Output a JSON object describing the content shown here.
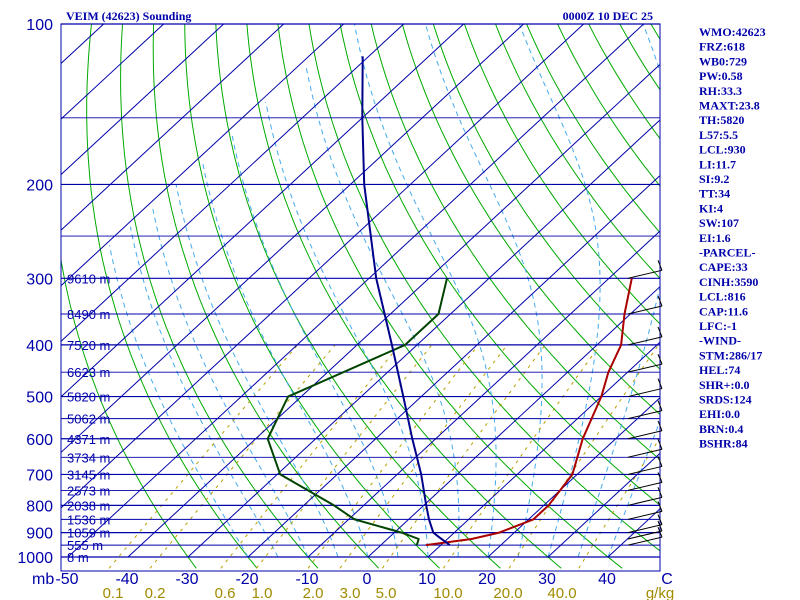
{
  "chart_data": {
    "type": "skew-t sounding",
    "title": "VEIM (42623) Sounding",
    "time_label": "0000Z 10 DEC 25",
    "pressure_axis": {
      "scale": "log",
      "range": [
        1000,
        100
      ],
      "tick_labels": [
        "100",
        "200",
        "300",
        "400",
        "500",
        "600",
        "700",
        "800",
        "900",
        "1000"
      ],
      "unit_label": "mb"
    },
    "temperature_axis": {
      "range": [
        -50,
        50
      ],
      "tick_labels": [
        "-50",
        "-40",
        "-30",
        "-20",
        "-10",
        "0",
        "10",
        "20",
        "30",
        "40",
        "C"
      ]
    },
    "mixing_ratio_labels": [
      "0.1",
      "0.2",
      "0.6",
      "1.0",
      "2.0",
      "3.0",
      "5.0",
      "10.0",
      "20.0",
      "40.0",
      "g/kg"
    ],
    "height_labels": [
      {
        "p": 300,
        "label": "9610 m"
      },
      {
        "p": 350,
        "label": "8490 m"
      },
      {
        "p": 400,
        "label": "7520 m"
      },
      {
        "p": 450,
        "label": "6623 m"
      },
      {
        "p": 500,
        "label": "5820 m"
      },
      {
        "p": 550,
        "label": "5062 m"
      },
      {
        "p": 600,
        "label": "4371 m"
      },
      {
        "p": 650,
        "label": "3734 m"
      },
      {
        "p": 700,
        "label": "3145 m"
      },
      {
        "p": 750,
        "label": "2573 m"
      },
      {
        "p": 800,
        "label": "2038 m"
      },
      {
        "p": 850,
        "label": "1536 m"
      },
      {
        "p": 900,
        "label": "1059 m"
      },
      {
        "p": 950,
        "label": "555 m"
      },
      {
        "p": 1000,
        "label": "8 m"
      }
    ],
    "series": [
      {
        "name": "temperature",
        "color": "#aa0000",
        "points": [
          [
            950,
            7.5
          ],
          [
            925,
            14
          ],
          [
            900,
            17.5
          ],
          [
            850,
            20.8
          ],
          [
            800,
            20.8
          ],
          [
            700,
            19.2
          ],
          [
            600,
            14.5
          ],
          [
            500,
            10
          ],
          [
            450,
            6.8
          ],
          [
            400,
            4
          ],
          [
            350,
            -1
          ],
          [
            300,
            -6.2
          ]
        ]
      },
      {
        "name": "dewpoint",
        "color": "#004400",
        "points": [
          [
            950,
            6
          ],
          [
            925,
            5.2
          ],
          [
            900,
            1.2
          ],
          [
            850,
            -9
          ],
          [
            800,
            -15
          ],
          [
            700,
            -29.5
          ],
          [
            600,
            -38
          ],
          [
            500,
            -42.2
          ],
          [
            400,
            -32
          ],
          [
            350,
            -32
          ],
          [
            300,
            -37
          ]
        ]
      },
      {
        "name": "parcel",
        "color": "#00008b",
        "points": [
          [
            950,
            11.5
          ],
          [
            920,
            8.5
          ],
          [
            900,
            6.5
          ],
          [
            850,
            3.4
          ],
          [
            800,
            0.4
          ],
          [
            700,
            -6
          ],
          [
            600,
            -13.9
          ],
          [
            500,
            -23
          ],
          [
            400,
            -34.2
          ],
          [
            300,
            -48.8
          ],
          [
            200,
            -67.7
          ],
          [
            150,
            -80
          ],
          [
            115,
            -91
          ]
        ]
      }
    ],
    "wind_barbs": [
      {
        "p": 950
      },
      {
        "p": 925
      },
      {
        "p": 900
      },
      {
        "p": 850
      },
      {
        "p": 800
      },
      {
        "p": 750
      },
      {
        "p": 700
      },
      {
        "p": 650
      },
      {
        "p": 600
      },
      {
        "p": 550
      },
      {
        "p": 500
      },
      {
        "p": 450
      },
      {
        "p": 400
      },
      {
        "p": 350
      },
      {
        "p": 300
      }
    ]
  },
  "indices": [
    "WMO:42623",
    "FRZ:618",
    "WB0:729",
    "PW:0.58",
    "RH:33.3",
    "MAXT:23.8",
    "TH:5820",
    "L57:5.5",
    "LCL:930",
    "LI:11.7",
    "SI:9.2",
    "TT:34",
    "KI:4",
    "SW:107",
    "EI:1.6",
    "-PARCEL-",
    "CAPE:33",
    "CINH:3590",
    "LCL:816",
    "CAP:11.6",
    "LFC:-1",
    "-WIND-",
    "STM:286/17",
    "HEL:74",
    "SHR+:0.0",
    "SRDS:124",
    "EHI:0.0",
    "BRN:0.4",
    "BSHR:84"
  ],
  "colors": {
    "isobar": "#0000aa",
    "isotherm": "#0000aa",
    "dry_adiabat": "#00aa00",
    "moist_adiabat": "#44aaee",
    "mixing_ratio": "#b8a000",
    "text": "#0000aa"
  }
}
